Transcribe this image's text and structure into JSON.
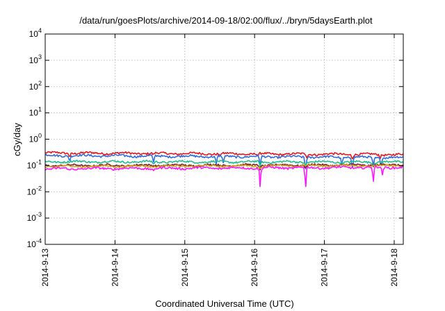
{
  "chart_data": {
    "type": "line",
    "title": "/data/run/goesPlots/archive/2014-09-18/02:00/flux/../bryn/5daysEarth.plot",
    "xlabel": "Coordinated Universal Time (UTC)",
    "ylabel": "cGy/day",
    "yscale": "log",
    "ylim": [
      0.0001,
      10000
    ],
    "xlim": [
      0.0,
      5.13
    ],
    "grid": true,
    "y_ticks": [
      {
        "value": 0.0001,
        "base": "10",
        "exp": "-4"
      },
      {
        "value": 0.001,
        "base": "10",
        "exp": "-3"
      },
      {
        "value": 0.01,
        "base": "10",
        "exp": "-2"
      },
      {
        "value": 0.1,
        "base": "10",
        "exp": "-1"
      },
      {
        "value": 1,
        "base": "10",
        "exp": "0"
      },
      {
        "value": 10,
        "base": "10",
        "exp": "1"
      },
      {
        "value": 100,
        "base": "10",
        "exp": "2"
      },
      {
        "value": 1000,
        "base": "10",
        "exp": "3"
      },
      {
        "value": 10000,
        "base": "10",
        "exp": "4"
      }
    ],
    "x_ticks": [
      {
        "value": 0,
        "label": "2014-9-13"
      },
      {
        "value": 1,
        "label": "2014-9-14"
      },
      {
        "value": 2,
        "label": "2014-9-15"
      },
      {
        "value": 3,
        "label": "2014-9-16"
      },
      {
        "value": 4,
        "label": "2014-9-17"
      },
      {
        "value": 5,
        "label": "2014-9-18"
      }
    ],
    "series": [
      {
        "color": "#e8171b",
        "base": 0.3,
        "base_end": 0.26,
        "noise": 0.09,
        "dips": [
          [
            0.35,
            0.75
          ],
          [
            1.55,
            0.85
          ],
          [
            2.5,
            0.8
          ],
          [
            3.05,
            0.8
          ],
          [
            3.75,
            0.75
          ],
          [
            4.4,
            0.7
          ],
          [
            4.8,
            0.75
          ]
        ]
      },
      {
        "color": "#2d6cdf",
        "base": 0.24,
        "base_end": 0.2,
        "noise": 0.09,
        "dips": [
          [
            0.35,
            0.6
          ],
          [
            1.55,
            0.45
          ],
          [
            2.45,
            0.45
          ],
          [
            2.55,
            0.5
          ],
          [
            3.08,
            0.35
          ],
          [
            3.73,
            0.25
          ],
          [
            4.25,
            0.45
          ],
          [
            4.4,
            0.35
          ],
          [
            4.7,
            0.35
          ],
          [
            4.81,
            0.4
          ]
        ]
      },
      {
        "color": "#1fbf8f",
        "base": 0.14,
        "base_end": 0.135,
        "noise": 0.08,
        "dips": [
          [
            1.55,
            0.75
          ],
          [
            3.08,
            0.7
          ],
          [
            3.73,
            0.75
          ],
          [
            4.7,
            0.7
          ]
        ]
      },
      {
        "color": "#7a1f2b",
        "base": 0.1,
        "base_end": 0.105,
        "noise": 0.08,
        "dips": [
          [
            3.08,
            0.7
          ],
          [
            3.73,
            0.75
          ]
        ]
      },
      {
        "color": "#d4a017",
        "base": 0.092,
        "base_end": 0.1,
        "noise": 0.07,
        "dips": [
          [
            3.08,
            0.8
          ]
        ]
      },
      {
        "color": "#ff14ff",
        "base": 0.075,
        "base_end": 0.085,
        "noise": 0.09,
        "dips": [
          [
            0.35,
            0.8
          ],
          [
            1.55,
            0.75
          ],
          [
            3.08,
            0.12
          ],
          [
            3.73,
            0.02
          ],
          [
            4.7,
            0.2
          ],
          [
            4.83,
            0.5
          ]
        ]
      }
    ]
  }
}
